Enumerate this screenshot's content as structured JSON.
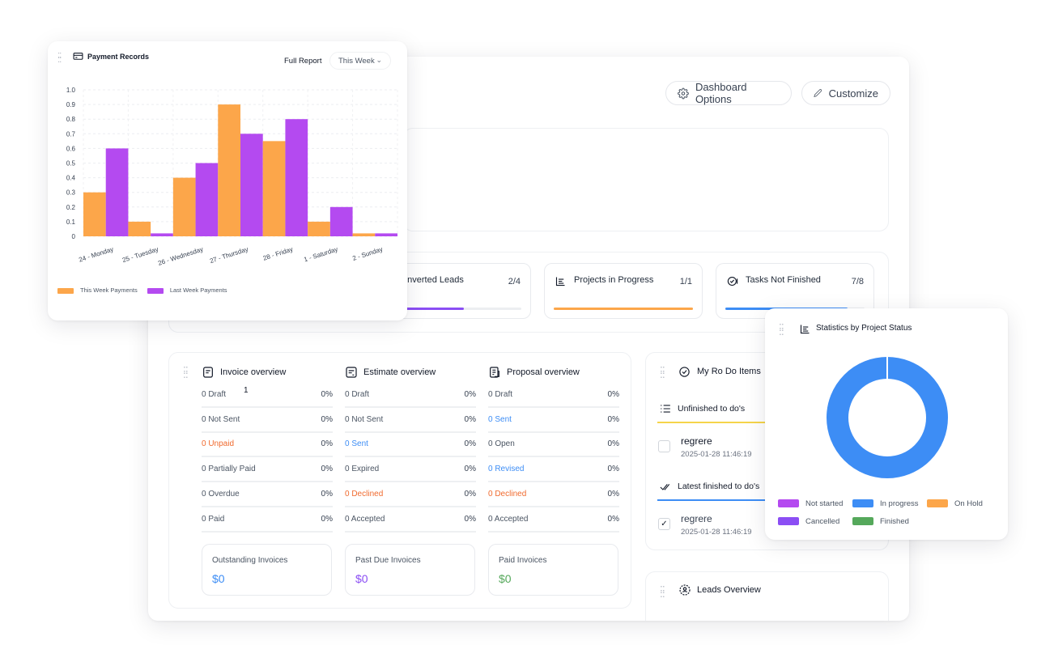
{
  "colors": {
    "orange": "#FCA64A",
    "purple": "#B44AF0",
    "blue": "#3D8DF5",
    "green": "#55A85B",
    "violet": "#8B4EF4",
    "red": "#F06A2E",
    "link_blue": "#3D8DF5",
    "yellow": "#F5D44A"
  },
  "main": {
    "dashboard_options": "Dashboard Options",
    "customize": "Customize"
  },
  "stats": [
    {
      "label": "onverted Leads",
      "count": "2/4",
      "progress": 0.5,
      "color": "#8B4EF4"
    },
    {
      "label": "Projects in Progress",
      "count": "1/1",
      "progress": 1.0,
      "color": "#FCA64A"
    },
    {
      "label": "Tasks Not Finished",
      "count": "7/8",
      "progress": 0.875,
      "color": "#3D8DF5"
    }
  ],
  "invoice": {
    "title": "Invoice overview",
    "stray": "1",
    "rows": [
      {
        "label": "0 Draft",
        "pct": "0%"
      },
      {
        "label": "0 Not Sent",
        "pct": "0%"
      },
      {
        "label": "0 Unpaid",
        "pct": "0%"
      },
      {
        "label": "0 Partially Paid",
        "pct": "0%"
      },
      {
        "label": "0 Overdue",
        "pct": "0%"
      },
      {
        "label": "0 Paid",
        "pct": "0%"
      }
    ]
  },
  "estimate": {
    "title": "Estimate overview",
    "rows": [
      {
        "label": "0 Draft",
        "pct": "0%"
      },
      {
        "label": "0 Not Sent",
        "pct": "0%"
      },
      {
        "label": "0 Sent",
        "pct": "0%"
      },
      {
        "label": "0 Expired",
        "pct": "0%"
      },
      {
        "label": "0 Declined",
        "pct": "0%"
      },
      {
        "label": "0 Accepted",
        "pct": "0%"
      }
    ]
  },
  "proposal": {
    "title": "Proposal overview",
    "rows": [
      {
        "label": "0 Draft",
        "pct": "0%"
      },
      {
        "label": "0 Sent",
        "pct": "0%"
      },
      {
        "label": "0 Open",
        "pct": "0%"
      },
      {
        "label": "0 Revised",
        "pct": "0%"
      },
      {
        "label": "0 Declined",
        "pct": "0%"
      },
      {
        "label": "0 Accepted",
        "pct": "0%"
      }
    ]
  },
  "summaries": [
    {
      "title": "Outstanding Invoices",
      "value": "$0"
    },
    {
      "title": "Past Due Invoices",
      "value": "$0"
    },
    {
      "title": "Paid Invoices",
      "value": "$0"
    }
  ],
  "todo": {
    "title": "My Ro Do Items",
    "unfinished_title": "Unfinished to do's",
    "unfinished": [
      {
        "text": "regrere",
        "date": "2025-01-28 11:46:19",
        "checked": false
      }
    ],
    "finished_title": "Latest finished to do's",
    "finished": [
      {
        "text": "regrere",
        "date": "2025-01-28 11:46:19",
        "checked": true
      }
    ]
  },
  "leads": {
    "title": "Leads Overview"
  },
  "payment": {
    "title": "Payment Records",
    "full_report": "Full Report",
    "period": "This Week"
  },
  "project_status": {
    "title": "Statistics by Project Status",
    "legend": [
      {
        "label": "Not started",
        "color": "#B44AF0"
      },
      {
        "label": "In progress",
        "color": "#3D8DF5"
      },
      {
        "label": "On Hold",
        "color": "#FCA64A"
      },
      {
        "label": "Cancelled",
        "color": "#8B4EF4"
      },
      {
        "label": "Finished",
        "color": "#55A85B"
      }
    ],
    "values": [
      0,
      1,
      0,
      0,
      0
    ]
  },
  "chart_data": [
    {
      "type": "bar",
      "categories": [
        "24 - Monday",
        "25 - Tuesday",
        "26 - Wednesday",
        "27 - Thursday",
        "28 - Friday",
        "1 - Saturday",
        "2 - Sunday"
      ],
      "series": [
        {
          "name": "This Week Payments",
          "values": [
            0.3,
            0.1,
            0.4,
            0.9,
            0.65,
            0.1,
            0.02
          ],
          "color": "#FCA64A"
        },
        {
          "name": "Last Week Payments",
          "values": [
            0.6,
            0.02,
            0.5,
            0.7,
            0.8,
            0.2,
            0.02
          ],
          "color": "#B44AF0"
        }
      ],
      "yticks": [
        "0",
        "0.1",
        "0.2",
        "0.3",
        "0.4",
        "0.5",
        "0.6",
        "0.7",
        "0.8",
        "0.9",
        "1.0"
      ],
      "ylim": [
        0,
        1.0
      ],
      "grid": true,
      "legend": "bottom-left"
    },
    {
      "type": "pie",
      "categories": [
        "Not started",
        "In progress",
        "On Hold",
        "Cancelled",
        "Finished"
      ],
      "values": [
        0,
        1,
        0,
        0,
        0
      ]
    }
  ]
}
